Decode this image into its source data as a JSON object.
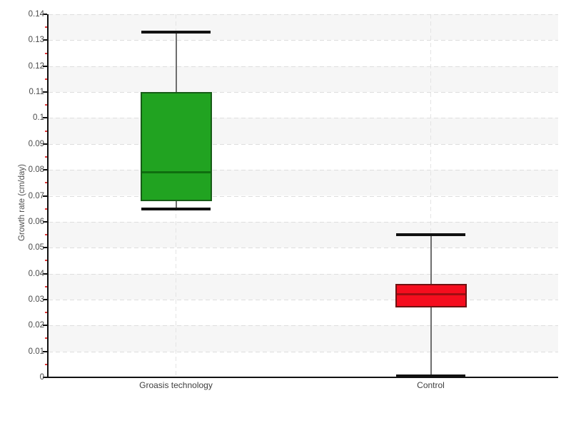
{
  "chart_data": {
    "type": "boxplot",
    "title": "",
    "xlabel": "",
    "ylabel": "Growth rate (cm/day)",
    "ylim": [
      0,
      0.14
    ],
    "ytick_step": 0.01,
    "ytick_labels": [
      "0",
      "0.01",
      "0.02",
      "0.03",
      "0.04",
      "0.05",
      "0.06",
      "0.07",
      "0.08",
      "0.09",
      "0.1",
      "0.11",
      "0.12",
      "0.13",
      "0.14"
    ],
    "minor_tick_step": 0.005,
    "categories": [
      "Groasis technology",
      "Control"
    ],
    "series": [
      {
        "name": "Groasis technology",
        "low": 0.065,
        "q1": 0.068,
        "median": 0.079,
        "q3": 0.11,
        "high": 0.133,
        "fill": "#21a321",
        "stroke": "#175c17",
        "median_color": "#0f6e0f"
      },
      {
        "name": "Control",
        "low": 0.0005,
        "q1": 0.027,
        "median": 0.032,
        "q3": 0.036,
        "high": 0.055,
        "fill": "#f50d1e",
        "stroke": "#6e1212",
        "median_color": "#a00d12"
      }
    ],
    "legend": "none",
    "grid": {
      "horizontal_gridlines": "dashed",
      "vertical_gridlines_at_categories": "dashed",
      "alternating_row_bands": true
    },
    "colors": {
      "band": "#f6f6f6",
      "gridline": "#dedede",
      "axis": "#111111",
      "tick_label": "#4a4a4a",
      "minor_tick": "#e03a3a",
      "whisker_stem": "#6e6e6e",
      "whisker_cap": "#111111",
      "background": "#ffffff"
    }
  }
}
